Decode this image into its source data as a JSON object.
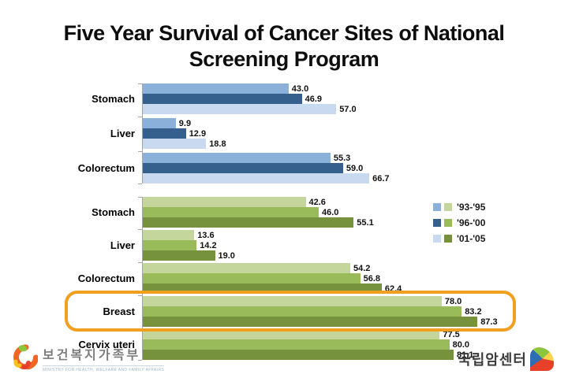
{
  "title": "Five Year Survival of Cancer Sites of National Screening Program",
  "legend": {
    "entries": [
      {
        "label": "'93-'95",
        "blue": "#8BB1DA",
        "green": "#C4D69B"
      },
      {
        "label": "'96-'00",
        "blue": "#35608D",
        "green": "#9ABB59"
      },
      {
        "label": "'01-'05",
        "blue": "#C9D9EF",
        "green": "#77923D"
      }
    ]
  },
  "chart_data": [
    {
      "type": "bar",
      "orientation": "horizontal",
      "palette": "blue",
      "categories": [
        "Stomach",
        "Liver",
        "Colorectum"
      ],
      "series": [
        {
          "name": "'93-'95",
          "color": "#8BB1DA",
          "values": [
            43.0,
            9.9,
            55.3
          ]
        },
        {
          "name": "'96-'00",
          "color": "#35608D",
          "values": [
            46.9,
            12.9,
            59.0
          ]
        },
        {
          "name": "'01-'05",
          "color": "#C9D9EF",
          "values": [
            57.0,
            18.8,
            66.7
          ]
        }
      ],
      "xlim": [
        0,
        100
      ],
      "value_labels": true,
      "grid": false
    },
    {
      "type": "bar",
      "orientation": "horizontal",
      "palette": "green",
      "categories": [
        "Stomach",
        "Liver",
        "Colorectum",
        "Breast",
        "Cervix uteri"
      ],
      "series": [
        {
          "name": "'93-'95",
          "color": "#C4D69B",
          "values": [
            42.6,
            13.6,
            54.2,
            78.0,
            77.5
          ]
        },
        {
          "name": "'96-'00",
          "color": "#9ABB59",
          "values": [
            46.0,
            14.2,
            56.8,
            83.2,
            80.0
          ]
        },
        {
          "name": "'01-'05",
          "color": "#77923D",
          "values": [
            55.1,
            19.0,
            62.4,
            87.3,
            81.1
          ]
        }
      ],
      "xlim": [
        0,
        100
      ],
      "value_labels": true,
      "grid": false,
      "highlight": {
        "category": "Breast",
        "box_color": "#F0A01E"
      }
    }
  ],
  "footer": {
    "ministry_logo_text": "보건복지가족부",
    "ministry_logo_subtext": "MINISTRY FOR HEALTH, WELFARE AND FAMILY AFFAIRS",
    "ncc_logo_text": "국립암센터"
  }
}
